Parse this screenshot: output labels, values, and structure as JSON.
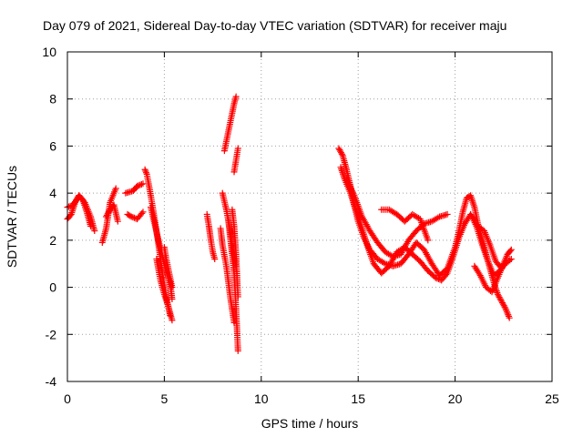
{
  "chart_data": {
    "type": "scatter",
    "title": "Day 079 of 2021, Sidereal Day-to-day VTEC variation (SDTVAR) for receiver maju",
    "xlabel": "GPS time / hours",
    "ylabel": "SDTVAR / TECUs",
    "xlim": [
      0,
      25
    ],
    "ylim": [
      -4,
      10
    ],
    "xticks": [
      0,
      5,
      10,
      15,
      20,
      25
    ],
    "yticks": [
      -4,
      -2,
      0,
      2,
      4,
      6,
      8,
      10
    ],
    "grid": true,
    "marker": "+",
    "color": "#ff0000",
    "series": [
      {
        "name": "SDTVAR",
        "segments": [
          {
            "x": [
              0.0,
              0.2,
              0.4,
              0.6,
              0.8,
              1.0,
              1.2
            ],
            "y": [
              2.9,
              3.1,
              3.6,
              3.9,
              3.7,
              3.2,
              2.6
            ]
          },
          {
            "x": [
              0.0,
              0.3,
              0.6,
              0.9,
              1.2,
              1.4
            ],
            "y": [
              3.4,
              3.5,
              3.9,
              3.6,
              3.0,
              2.4
            ]
          },
          {
            "x": [
              1.8,
              2.0,
              2.2,
              2.5
            ],
            "y": [
              1.9,
              2.5,
              3.6,
              4.2
            ]
          },
          {
            "x": [
              2.0,
              2.2,
              2.4,
              2.6
            ],
            "y": [
              3.0,
              3.3,
              3.5,
              2.8
            ]
          },
          {
            "x": [
              3.0,
              3.4,
              3.6,
              3.9
            ],
            "y": [
              4.0,
              4.1,
              4.3,
              4.4
            ]
          },
          {
            "x": [
              3.1,
              3.3,
              3.6,
              3.9
            ],
            "y": [
              3.1,
              3.0,
              2.9,
              3.2
            ]
          },
          {
            "x": [
              4.0,
              4.1,
              4.3,
              4.5,
              4.7,
              4.9,
              5.1,
              5.3
            ],
            "y": [
              5.0,
              4.8,
              3.9,
              2.9,
              1.8,
              0.6,
              -0.4,
              -1.2
            ]
          },
          {
            "x": [
              4.3,
              4.5,
              4.7,
              4.9,
              5.1,
              5.3,
              5.4
            ],
            "y": [
              3.4,
              2.7,
              2.0,
              1.3,
              0.7,
              0.2,
              -0.5
            ]
          },
          {
            "x": [
              4.6,
              4.8,
              5.0,
              5.2,
              5.4
            ],
            "y": [
              1.2,
              0.3,
              -0.3,
              -0.8,
              -1.4
            ]
          },
          {
            "x": [
              5.0,
              5.1,
              5.2,
              5.3,
              5.4
            ],
            "y": [
              1.7,
              1.2,
              0.8,
              0.4,
              0.0
            ]
          },
          {
            "x": [
              7.2,
              7.3,
              7.4,
              7.5,
              7.6
            ],
            "y": [
              3.1,
              2.6,
              2.0,
              1.5,
              1.2
            ]
          },
          {
            "x": [
              7.9,
              8.0,
              8.2,
              8.4,
              8.6
            ],
            "y": [
              2.5,
              1.8,
              0.9,
              -0.4,
              -1.5
            ]
          },
          {
            "x": [
              8.0,
              8.2,
              8.4,
              8.5,
              8.7
            ],
            "y": [
              4.0,
              3.3,
              2.4,
              1.7,
              0.9
            ]
          },
          {
            "x": [
              8.1,
              8.2,
              8.3,
              8.4,
              8.5,
              8.6,
              8.7
            ],
            "y": [
              5.8,
              6.2,
              6.6,
              7.0,
              7.4,
              7.8,
              8.1
            ]
          },
          {
            "x": [
              8.3,
              8.4,
              8.6,
              8.7,
              8.8
            ],
            "y": [
              2.9,
              2.1,
              0.6,
              -0.9,
              -2.7
            ]
          },
          {
            "x": [
              8.6,
              8.7,
              8.8
            ],
            "y": [
              4.9,
              5.4,
              5.9
            ]
          },
          {
            "x": [
              8.5,
              8.6,
              8.7,
              8.8
            ],
            "y": [
              3.3,
              2.6,
              1.4,
              -0.4
            ]
          },
          {
            "x": [
              14.0,
              14.2,
              14.4,
              14.6,
              14.8,
              15.0,
              15.3,
              15.6,
              16.0,
              16.4,
              16.8,
              17.2,
              17.6,
              18.0,
              18.4,
              18.8,
              19.2,
              19.6,
              20.0,
              20.2,
              20.4,
              20.6,
              20.8,
              21.0,
              21.2,
              21.4,
              21.6,
              21.8,
              22.0,
              22.2,
              22.4,
              22.6,
              22.8
            ],
            "y": [
              5.9,
              5.6,
              5.0,
              4.3,
              3.5,
              2.8,
              2.1,
              1.6,
              1.2,
              1.0,
              0.9,
              1.0,
              1.4,
              1.9,
              1.6,
              1.0,
              0.5,
              0.8,
              1.7,
              2.4,
              3.2,
              3.8,
              3.9,
              3.4,
              2.6,
              2.0,
              1.4,
              0.8,
              0.2,
              -0.3,
              -0.6,
              -0.9,
              -1.3
            ]
          },
          {
            "x": [
              14.1,
              14.3,
              14.6,
              14.9,
              15.2,
              15.5,
              15.8,
              16.2,
              16.6,
              17.0,
              17.4,
              17.8,
              18.2,
              18.6,
              19.0,
              19.3,
              19.6,
              19.9,
              20.2,
              20.5,
              20.8,
              21.1,
              21.4,
              21.7,
              22.0,
              22.3,
              22.6,
              22.9
            ],
            "y": [
              5.1,
              4.6,
              4.0,
              3.2,
              2.5,
              1.7,
              1.0,
              0.6,
              0.9,
              1.5,
              1.7,
              1.4,
              1.1,
              0.7,
              0.4,
              0.3,
              0.6,
              1.3,
              2.1,
              2.7,
              3.1,
              2.6,
              1.8,
              1.1,
              0.5,
              0.7,
              1.0,
              1.2
            ]
          },
          {
            "x": [
              16.2,
              16.6,
              17.0,
              17.4,
              17.8,
              18.2,
              18.6
            ],
            "y": [
              3.3,
              3.3,
              3.1,
              2.8,
              3.1,
              2.9,
              2.0
            ]
          },
          {
            "x": [
              14.4,
              14.8,
              15.2,
              15.6,
              16.0,
              16.4,
              16.8,
              17.2,
              17.6,
              18.0,
              18.4,
              18.8,
              19.2,
              19.6
            ],
            "y": [
              4.6,
              3.9,
              3.0,
              2.4,
              1.9,
              1.5,
              1.3,
              1.4,
              2.0,
              2.4,
              2.7,
              2.8,
              3.0,
              3.1
            ]
          },
          {
            "x": [
              21.2,
              21.5,
              21.8,
              22.1,
              22.4,
              22.7,
              22.9
            ],
            "y": [
              2.6,
              2.4,
              1.8,
              1.1,
              0.8,
              1.4,
              1.6
            ]
          },
          {
            "x": [
              21.0,
              21.3,
              21.6,
              21.9,
              22.2,
              22.5
            ],
            "y": [
              0.9,
              0.5,
              0.0,
              -0.2,
              0.4,
              1.0
            ]
          }
        ]
      }
    ]
  }
}
